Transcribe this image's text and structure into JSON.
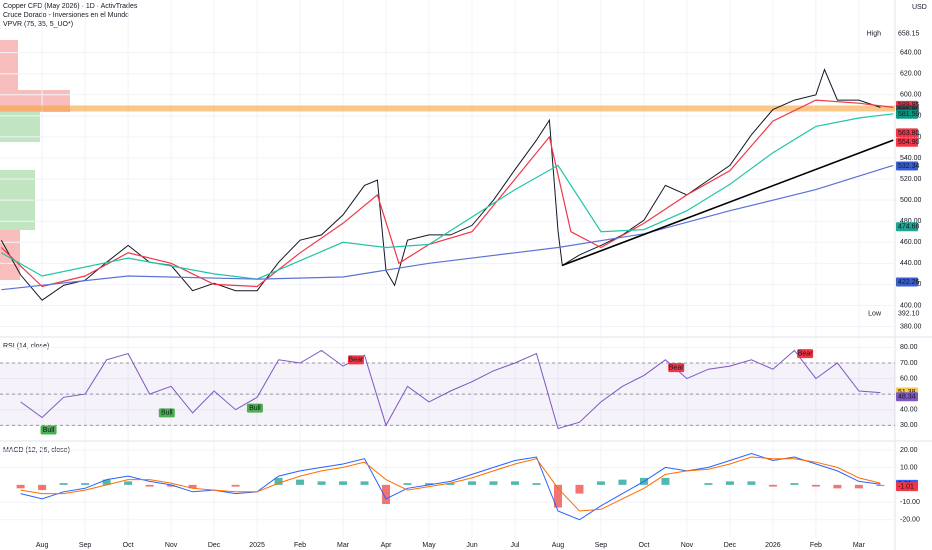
{
  "header": {
    "title": "Copper CFD (May 2026) · 1D · ActivTrades",
    "subtitle": "Cruce Dorado - Inversiones en el Mundo",
    "indicator": "VPVR (75, 35, 5_UO*)",
    "currency": "USD"
  },
  "chart_data": [
    {
      "type": "line",
      "xlim": [
        -0.98,
        19.84
      ],
      "xticks": [
        {
          "value": 0,
          "label": "Aug"
        },
        {
          "value": 1,
          "label": "Sep"
        },
        {
          "value": 2,
          "label": "Oct"
        },
        {
          "value": 3,
          "label": "Nov"
        },
        {
          "value": 4,
          "label": "Dec"
        },
        {
          "value": 5,
          "label": "2025"
        },
        {
          "value": 6,
          "label": "Feb"
        },
        {
          "value": 7,
          "label": "Mar"
        },
        {
          "value": 8,
          "label": "Apr"
        },
        {
          "value": 9,
          "label": "May"
        },
        {
          "value": 10,
          "label": "Jun"
        },
        {
          "value": 11,
          "label": "Jul"
        },
        {
          "value": 12,
          "label": "Aug"
        },
        {
          "value": 13,
          "label": "Sep"
        },
        {
          "value": 14,
          "label": "Oct"
        },
        {
          "value": 15,
          "label": "Nov"
        },
        {
          "value": 16,
          "label": "Dec"
        },
        {
          "value": 17,
          "label": "2026"
        },
        {
          "value": 18,
          "label": "Feb"
        },
        {
          "value": 19,
          "label": "Mar"
        }
      ],
      "ylim": [
        371,
        690
      ],
      "yticks": [
        {
          "value": 380,
          "label": "380.00"
        },
        {
          "value": 400,
          "label": "400.00"
        },
        {
          "value": 420,
          "label": "420.00"
        },
        {
          "value": 440,
          "label": "440.00"
        },
        {
          "value": 460,
          "label": "460.00"
        },
        {
          "value": 480,
          "label": "480.00"
        },
        {
          "value": 500,
          "label": "500.00"
        },
        {
          "value": 520,
          "label": "520.00"
        },
        {
          "value": 540,
          "label": "540.00"
        },
        {
          "value": 560,
          "label": "560.00"
        },
        {
          "value": 580,
          "label": "580.00"
        },
        {
          "value": 600,
          "label": "600.00"
        },
        {
          "value": 620,
          "label": "620.00"
        },
        {
          "value": 640,
          "label": "640.00"
        }
      ],
      "series": [
        {
          "color": "#131722",
          "x": [
            -0.95,
            -0.5,
            0,
            0.5,
            1,
            1.5,
            2,
            2.5,
            3,
            3.5,
            4,
            4.5,
            5,
            5.5,
            6,
            6.5,
            7,
            7.5,
            7.8,
            8,
            8.2,
            8.5,
            9,
            9.5,
            10,
            10.5,
            11,
            11.5,
            11.8,
            12,
            12.1,
            12.5,
            13,
            13.5,
            14,
            14.5,
            15,
            15.5,
            16,
            16.5,
            17,
            17.5,
            18,
            18.2,
            18.5,
            19,
            19.5
          ],
          "values": [
            462,
            429,
            405,
            419,
            424,
            441,
            457,
            441,
            438,
            414,
            421,
            414,
            414,
            441,
            462,
            467,
            486,
            514,
            519,
            433,
            419,
            462,
            467,
            467,
            476,
            500,
            529,
            557,
            576,
            471,
            438,
            448,
            457,
            467,
            481,
            514,
            505,
            519,
            533,
            562,
            586,
            595,
            600,
            624,
            595,
            595,
            588
          ]
        },
        {
          "color": "#f23645",
          "x": [
            -0.95,
            0,
            1,
            2,
            3,
            4,
            5,
            6,
            7,
            7.8,
            8.3,
            9,
            10,
            11,
            11.8,
            12.3,
            13,
            14,
            15,
            16,
            17,
            18,
            19,
            19.8
          ],
          "values": [
            455,
            418,
            428,
            450,
            440,
            420,
            418,
            450,
            478,
            505,
            440,
            458,
            470,
            520,
            560,
            470,
            455,
            478,
            505,
            528,
            575,
            595,
            592,
            588
          ]
        },
        {
          "color": "#22c5a5",
          "x": [
            -0.95,
            0,
            2,
            4,
            5,
            7,
            8,
            9,
            11,
            12,
            13,
            14,
            15,
            16,
            17,
            18,
            19,
            19.8
          ],
          "values": [
            450,
            428,
            445,
            430,
            425,
            460,
            455,
            458,
            510,
            533,
            470,
            472,
            490,
            515,
            545,
            570,
            578,
            582
          ]
        },
        {
          "color": "#5b72d6",
          "x": [
            -0.95,
            2,
            5,
            7,
            9,
            11,
            12,
            14,
            16,
            18,
            19.8
          ],
          "values": [
            415,
            428,
            425,
            427,
            440,
            450,
            455,
            468,
            490,
            510,
            533
          ]
        },
        {
          "color": "#000000",
          "x": [
            12.1,
            19.8
          ],
          "values": [
            438,
            557
          ]
        }
      ],
      "hline": {
        "value": 587,
        "color": "#f7a23c"
      },
      "tags": [
        {
          "value": 589.95,
          "color": "#f23645"
        },
        {
          "value": 585.9,
          "label": "585.90",
          "color": "#434651"
        },
        {
          "value": 581.5,
          "label": "581.50",
          "color": "#089981"
        },
        {
          "value": 563.8,
          "label": "563.80",
          "color": "#f23645"
        },
        {
          "value": 554.9,
          "label": "554.90",
          "color": "#f23645"
        },
        {
          "value": 532.34,
          "color": "#3a5fcd"
        },
        {
          "value": 474.68,
          "color": "#1fa393"
        },
        {
          "value": 422.26,
          "color": "#3a5fcd"
        }
      ],
      "extremes": [
        {
          "text": "High",
          "value": 658.15
        },
        {
          "text": "Low",
          "value": 392.1,
          "label": "392.10"
        }
      ]
    },
    {
      "type": "rsi",
      "title": "RSI (14, close)",
      "color": "#7e57c2",
      "ylim": [
        20.6,
        86
      ],
      "yticks": [
        {
          "value": 30,
          "label": "30.00"
        },
        {
          "value": 40,
          "label": "40.00"
        },
        {
          "value": 50,
          "label": "50.00"
        },
        {
          "value": 60,
          "label": "60.00"
        },
        {
          "value": 70,
          "label": "70.00"
        },
        {
          "value": 80,
          "label": "80.00"
        }
      ],
      "bands": [
        30,
        50,
        70
      ],
      "x": [
        -0.5,
        0,
        0.5,
        1,
        1.5,
        2,
        2.5,
        3,
        3.5,
        4,
        4.5,
        5,
        5.5,
        6,
        6.5,
        7,
        7.5,
        8,
        8.5,
        9,
        9.5,
        10,
        10.5,
        11,
        11.5,
        12,
        12.5,
        13,
        13.5,
        14,
        14.5,
        15,
        15.5,
        16,
        16.5,
        17,
        17.5,
        18,
        18.5,
        19,
        19.5
      ],
      "values": [
        45,
        35,
        48,
        50,
        72,
        76,
        50,
        55,
        38,
        52,
        40,
        48,
        72,
        70,
        78,
        68,
        75,
        30,
        55,
        45,
        52,
        58,
        65,
        70,
        76,
        28,
        32,
        45,
        55,
        62,
        72,
        60,
        66,
        68,
        72,
        66,
        78,
        60,
        70,
        52,
        51
      ],
      "annotations": [
        {
          "text": "Bull",
          "x": 0.15,
          "value": 27,
          "color": "#4caf50"
        },
        {
          "text": "Bull",
          "x": 2.9,
          "value": 38,
          "color": "#4caf50"
        },
        {
          "text": "Bull",
          "x": 4.95,
          "value": 41,
          "color": "#4caf50"
        },
        {
          "text": "Bear",
          "x": 7.3,
          "value": 72,
          "color": "#f23645"
        },
        {
          "text": "Bear",
          "x": 14.75,
          "value": 67,
          "color": "#f23645"
        },
        {
          "text": "Bear",
          "x": 17.75,
          "value": 76,
          "color": "#f23645"
        }
      ],
      "tags": [
        {
          "value": 51.38,
          "color": "#f7c948"
        },
        {
          "value": 48.34,
          "color": "#7e57c2"
        }
      ]
    },
    {
      "type": "macd",
      "title": "MACD (12, 26, close)",
      "ylim": [
        -30.5,
        24.6
      ],
      "yticks": [
        {
          "value": -20,
          "label": "-20.00"
        },
        {
          "value": -10,
          "label": "-10.00"
        },
        {
          "value": 10,
          "label": "10.00"
        },
        {
          "value": 20,
          "label": "20.00"
        }
      ],
      "x": [
        -0.5,
        0,
        0.5,
        1,
        1.5,
        2,
        2.5,
        3,
        3.5,
        4,
        4.5,
        5,
        5.5,
        6,
        6.5,
        7,
        7.5,
        8,
        8.5,
        9,
        9.5,
        10,
        10.5,
        11,
        11.5,
        12,
        12.5,
        13,
        13.5,
        14,
        14.5,
        15,
        15.5,
        16,
        16.5,
        17,
        17.5,
        18,
        18.5,
        19,
        19.5
      ],
      "series": [
        {
          "color": "#2962ff",
          "values": [
            -5,
            -8,
            -4,
            -2,
            3,
            5,
            2,
            0,
            -4,
            -3,
            -5,
            -4,
            5,
            8,
            10,
            12,
            15,
            -8,
            -2,
            0,
            2,
            6,
            10,
            14,
            16,
            -15,
            -20,
            -12,
            -5,
            2,
            10,
            8,
            10,
            14,
            18,
            14,
            16,
            12,
            8,
            2,
            0.3
          ]
        },
        {
          "color": "#ff6d00",
          "values": [
            -3,
            -5,
            -5,
            -3,
            0,
            3,
            3,
            1,
            -2,
            -3,
            -4,
            -4,
            1,
            5,
            8,
            10,
            13,
            3,
            -3,
            -1,
            1,
            4,
            8,
            12,
            15,
            -2,
            -15,
            -14,
            -8,
            -2,
            6,
            8,
            9,
            12,
            16,
            15,
            15,
            13,
            10,
            4,
            1
          ]
        }
      ],
      "histogram": [
        -2,
        -3,
        1,
        1,
        3,
        2,
        -1,
        -1,
        -2,
        0,
        -1,
        0,
        4,
        3,
        2,
        2,
        2,
        -11,
        1,
        1,
        1,
        2,
        2,
        2,
        1,
        -13,
        -5,
        2,
        3,
        4,
        4,
        0,
        1,
        2,
        2,
        -1,
        1,
        -1,
        -2,
        -2,
        -0.7
      ],
      "hist_colors": {
        "up": "#26a69a",
        "down": "#ef5350"
      },
      "tags": [
        {
          "value": 0.31,
          "color": "#2962ff"
        },
        {
          "value": -1.01,
          "label": "-1.01",
          "color": "#f23645"
        }
      ]
    }
  ]
}
